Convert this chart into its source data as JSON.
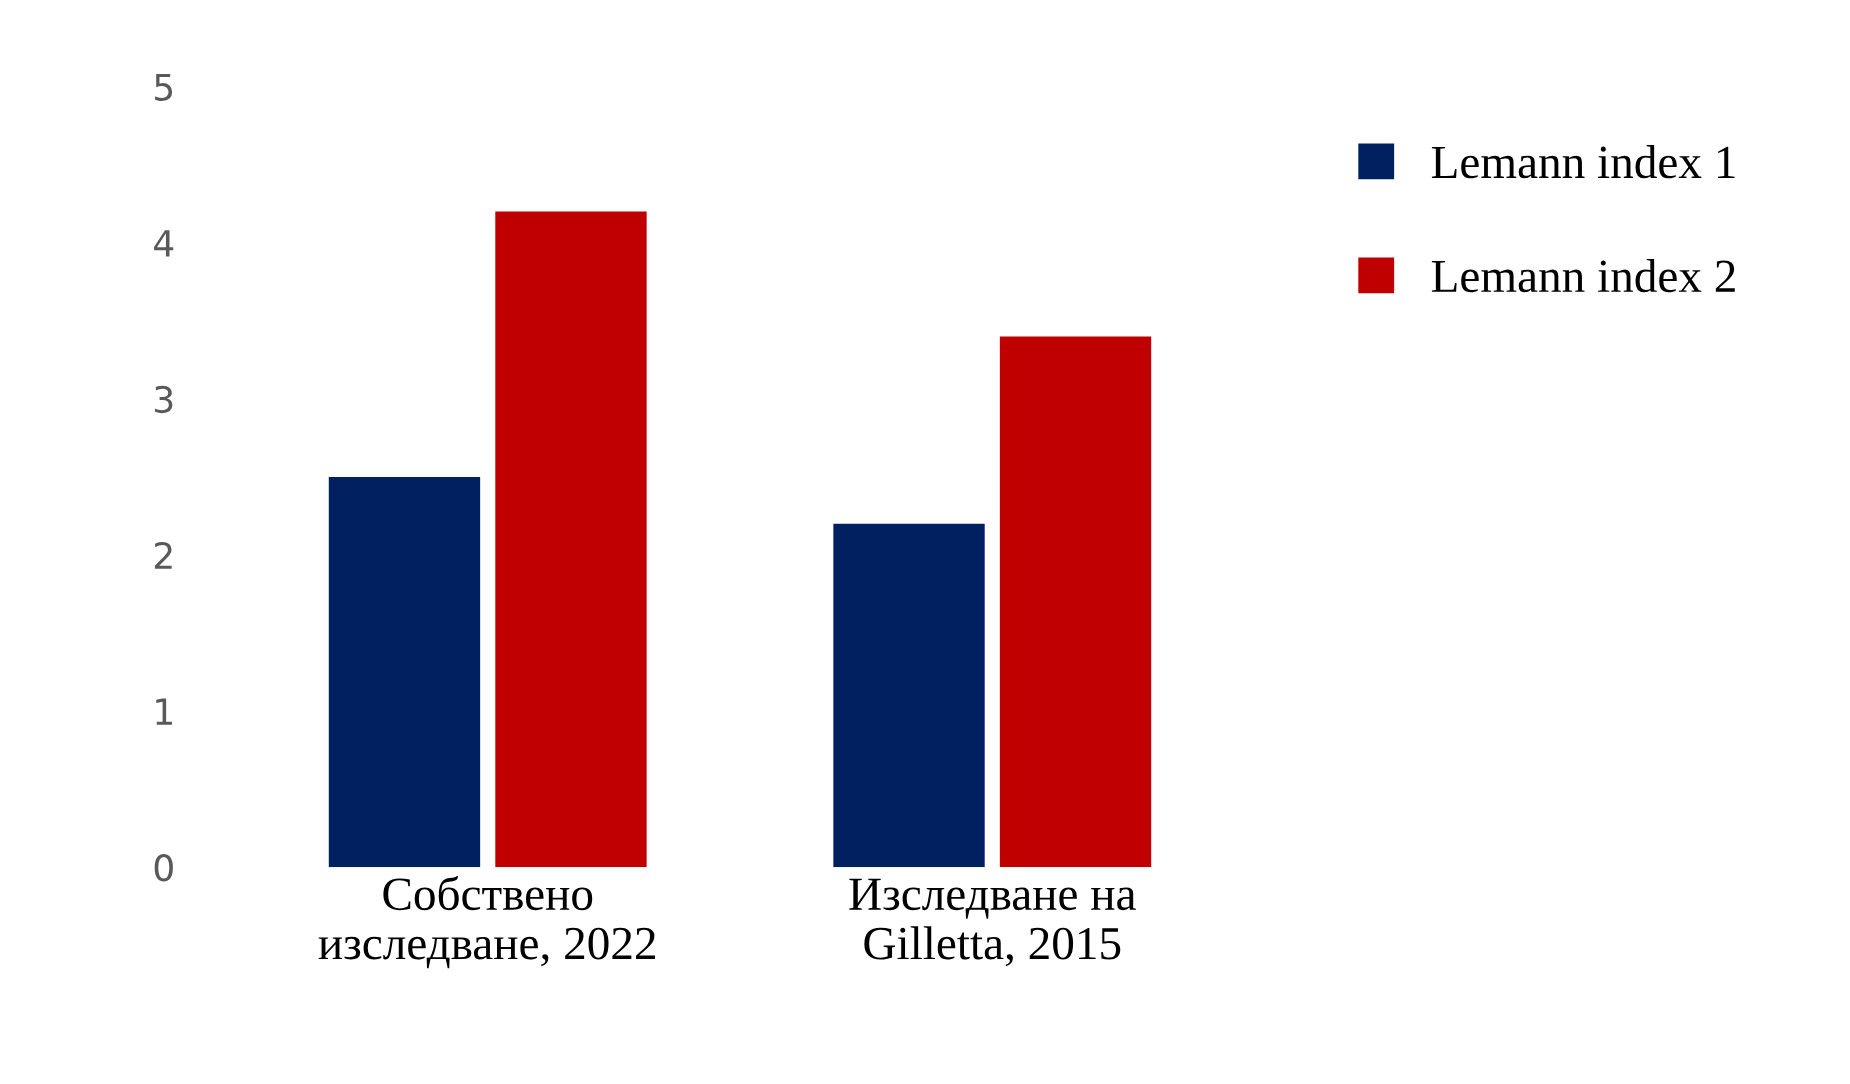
{
  "chart_data": {
    "type": "bar",
    "categories": [
      "Собствено\nизследване, 2022",
      "Изследване на\nGilletta, 2015"
    ],
    "series": [
      {
        "name": "Lemann index 1",
        "color": "#002060",
        "values": [
          2.5,
          2.2
        ]
      },
      {
        "name": "Lemann index 2",
        "color": "#c00000",
        "values": [
          4.2,
          3.4
        ]
      }
    ],
    "ylim": [
      0,
      5
    ],
    "yticks": [
      0,
      1,
      2,
      3,
      4,
      5
    ],
    "grid": false,
    "legend": "right"
  }
}
